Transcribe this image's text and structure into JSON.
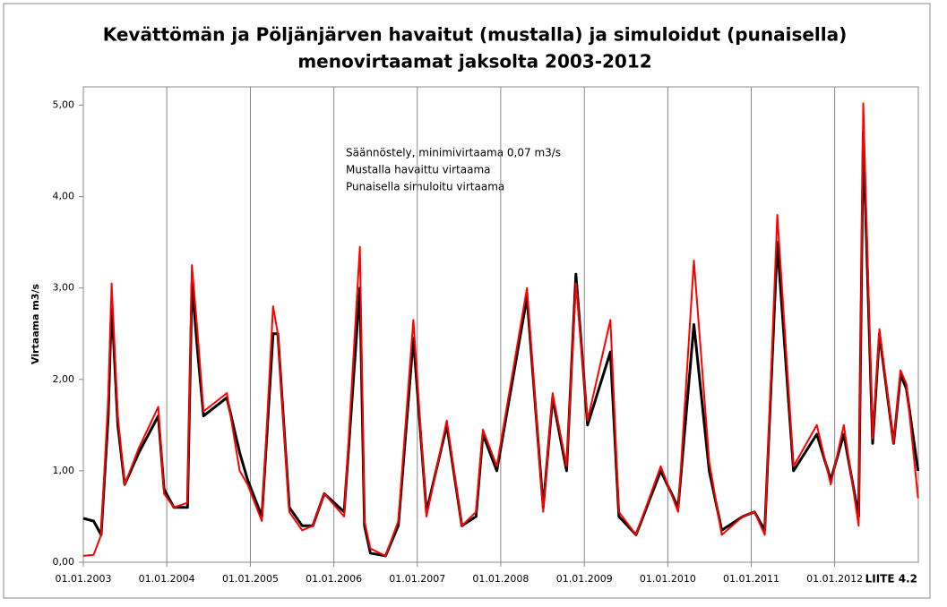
{
  "chart_data": {
    "type": "line",
    "title": [
      "Kevättömän ja Pöljänjärven havaitut (mustalla) ja simuloidut (punaisella)",
      "menovirtaamat jaksolta 2003-2012"
    ],
    "annotation": [
      "Säännöstely, minimivirtaama 0,07 m3/s",
      "Mustalla havaittu  virtaama",
      "Punaisella simuloitu virtaama"
    ],
    "footnote": "LIITE 4.2",
    "y_label": "Virtaama m3/s",
    "xlim": [
      "01.01.2003",
      "01.01.2013"
    ],
    "xticks": [
      "01.01.2003",
      "01.01.2004",
      "01.01.2005",
      "01.01.2006",
      "01.01.2007",
      "01.01.2008",
      "01.01.2009",
      "01.01.2010",
      "01.01.2011",
      "01.01.2012"
    ],
    "ylim": [
      0,
      5.2
    ],
    "yticks": [
      {
        "value": 0,
        "label": "0,00"
      },
      {
        "value": 1,
        "label": "1,00"
      },
      {
        "value": 2,
        "label": "2,00"
      },
      {
        "value": 3,
        "label": "3,00"
      },
      {
        "value": 4,
        "label": "4,00"
      },
      {
        "value": 5,
        "label": "5,00"
      }
    ],
    "grid": "x",
    "x": [
      "01.01.2003",
      "15.02.2003",
      "20.03.2003",
      "20.04.2003",
      "05.05.2003",
      "01.06.2003",
      "01.07.2003",
      "01.09.2003",
      "25.11.2003",
      "20.12.2003",
      "01.02.2004",
      "01.04.2004",
      "20.04.2004",
      "15.05.2004",
      "10.06.2004",
      "20.09.2004",
      "15.11.2004",
      "20.12.2004",
      "20.02.2005",
      "10.04.2005",
      "01.05.2005",
      "20.06.2005",
      "15.08.2005",
      "01.10.2005",
      "20.11.2005",
      "15.02.2006",
      "25.04.2006",
      "15.05.2006",
      "10.06.2006",
      "15.08.2006",
      "10.10.2006",
      "15.12.2006",
      "10.02.2007",
      "10.05.2007",
      "15.07.2007",
      "15.09.2007",
      "15.10.2007",
      "15.12.2007",
      "25.04.2008",
      "05.07.2008",
      "15.08.2008",
      "15.10.2008",
      "25.11.2008",
      "15.01.2009",
      "25.04.2009",
      "01.06.2009",
      "15.08.2009",
      "01.12.2009",
      "15.02.2010",
      "25.04.2010",
      "01.07.2010",
      "25.08.2010",
      "25.11.2010",
      "15.01.2011",
      "01.03.2011",
      "25.04.2011",
      "05.07.2011",
      "15.10.2011",
      "15.12.2011",
      "10.02.2012",
      "15.04.2012",
      "05.05.2012",
      "15.06.2012",
      "15.07.2012",
      "15.09.2012",
      "15.10.2012",
      "10.11.2012",
      "31.12.2012"
    ],
    "series": [
      {
        "name": "havaittu",
        "color": "#000000",
        "width": 3,
        "values": [
          0.48,
          0.45,
          0.3,
          1.6,
          2.85,
          1.5,
          0.85,
          1.2,
          1.6,
          0.8,
          0.6,
          0.6,
          3.05,
          2.3,
          1.6,
          1.8,
          1.2,
          0.9,
          0.5,
          2.5,
          2.5,
          0.6,
          0.4,
          0.4,
          0.75,
          0.55,
          3.0,
          0.4,
          0.1,
          0.07,
          0.4,
          2.45,
          0.55,
          1.5,
          0.4,
          0.5,
          1.4,
          1.0,
          2.9,
          0.6,
          1.8,
          1.0,
          3.15,
          1.5,
          2.3,
          0.5,
          0.3,
          1.0,
          0.6,
          2.6,
          1.0,
          0.35,
          0.5,
          0.55,
          0.35,
          3.5,
          1.0,
          1.4,
          0.9,
          1.4,
          0.5,
          4.7,
          1.3,
          2.5,
          1.3,
          2.05,
          1.9,
          1.0
        ]
      },
      {
        "name": "simuloitu",
        "color": "#ff0000",
        "width": 2,
        "values": [
          0.07,
          0.08,
          0.3,
          1.8,
          3.05,
          1.6,
          0.85,
          1.25,
          1.7,
          0.75,
          0.6,
          0.65,
          3.25,
          2.5,
          1.65,
          1.85,
          1.0,
          0.85,
          0.45,
          2.8,
          2.5,
          0.55,
          0.35,
          0.4,
          0.75,
          0.5,
          3.45,
          0.45,
          0.15,
          0.07,
          0.45,
          2.65,
          0.5,
          1.55,
          0.4,
          0.55,
          1.45,
          1.05,
          3.0,
          0.55,
          1.85,
          1.05,
          3.05,
          1.55,
          2.65,
          0.55,
          0.3,
          1.05,
          0.55,
          3.3,
          1.1,
          0.3,
          0.5,
          0.55,
          0.3,
          3.8,
          1.05,
          1.5,
          0.85,
          1.5,
          0.4,
          5.02,
          1.35,
          2.55,
          1.3,
          2.1,
          1.95,
          0.7
        ]
      }
    ]
  }
}
